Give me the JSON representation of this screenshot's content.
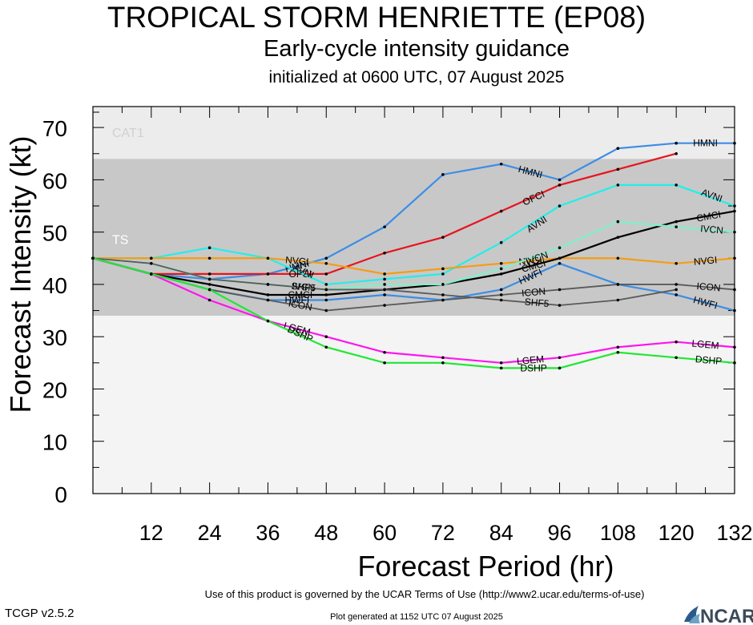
{
  "title": "TROPICAL STORM HENRIETTE (EP08)",
  "subtitle": "Early-cycle intensity guidance",
  "init_line": "initialized at 0600 UTC, 07 August 2025",
  "footer_terms": "Use of this product is governed by the UCAR Terms of Use (http://www2.ucar.edu/terms-of-use)",
  "footer_generated": "Plot generated at 1152 UTC   07 August 2025",
  "version": "TCGP v2.5.2",
  "logo_text": "NCAR",
  "chart_data": {
    "type": "line",
    "xlabel": "Forecast Period (hr)",
    "ylabel": "Forecast Intensity (kt)",
    "xlim": [
      0,
      132
    ],
    "ylim": [
      0,
      74
    ],
    "xticks": [
      12,
      24,
      36,
      48,
      60,
      72,
      84,
      96,
      108,
      120,
      132
    ],
    "yticks": [
      0,
      10,
      20,
      30,
      40,
      50,
      60,
      70
    ],
    "bands": [
      {
        "label": "CAT1",
        "from": 64,
        "to": 74,
        "color": "#ececec"
      },
      {
        "label": "TS",
        "from": 34,
        "to": 64,
        "color": "#c8c8c8"
      },
      {
        "label": "",
        "from": 0,
        "to": 34,
        "color": "#f4f4f4"
      }
    ],
    "series": [
      {
        "name": "HMNI",
        "color": "#3b8de6",
        "x": [
          0,
          12,
          24,
          36,
          48,
          60,
          72,
          84,
          96,
          108,
          120,
          132
        ],
        "values": [
          45,
          42,
          41,
          42,
          45,
          51,
          61,
          63,
          60,
          66,
          67,
          67
        ]
      },
      {
        "name": "OFCI",
        "color": "#e8141e",
        "x": [
          0,
          12,
          24,
          36,
          48,
          60,
          72,
          84,
          96,
          108,
          120
        ],
        "values": [
          45,
          42,
          42,
          42,
          42,
          46,
          49,
          54,
          59,
          62,
          65
        ]
      },
      {
        "name": "AVNI",
        "color": "#22eeea",
        "x": [
          0,
          12,
          24,
          36,
          48,
          60,
          72,
          84,
          96,
          108,
          120,
          132
        ],
        "values": [
          45,
          45,
          47,
          45,
          40,
          41,
          42,
          48,
          55,
          59,
          59,
          55
        ]
      },
      {
        "name": "NVGI",
        "color": "#f59c14",
        "x": [
          0,
          12,
          24,
          36,
          48,
          60,
          72,
          84,
          96,
          108,
          120,
          132
        ],
        "values": [
          45,
          45,
          45,
          45,
          44,
          42,
          43,
          44,
          45,
          45,
          44,
          45
        ]
      },
      {
        "name": "CMCI",
        "color": "#000000",
        "x": [
          0,
          12,
          24,
          36,
          48,
          60,
          72,
          84,
          96,
          108,
          120,
          132
        ],
        "values": [
          45,
          42,
          40,
          38,
          38,
          39,
          40,
          42,
          45,
          49,
          52,
          54
        ]
      },
      {
        "name": "IVCN",
        "color": "#7ff0c8",
        "x": [
          0,
          12,
          24,
          36,
          48,
          60,
          72,
          84,
          96,
          108,
          120,
          132
        ],
        "values": [
          45,
          44,
          41,
          40,
          39,
          40,
          40,
          43,
          47,
          52,
          51,
          50
        ]
      },
      {
        "name": "HWFI",
        "color": "#3b8de6",
        "x": [
          0,
          12,
          24,
          36,
          48,
          60,
          72,
          84,
          96,
          108,
          120,
          132
        ],
        "values": [
          45,
          42,
          39,
          37,
          37,
          38,
          37,
          39,
          44,
          40,
          38,
          35
        ]
      },
      {
        "name": "ICON",
        "color": "#5a5a5a",
        "x": [
          0,
          12,
          24,
          36,
          48,
          60,
          72,
          84,
          96,
          108,
          120,
          132
        ],
        "values": [
          45,
          42,
          39,
          37,
          35,
          36,
          37,
          38,
          39,
          40,
          40,
          39
        ]
      },
      {
        "name": "SHF5",
        "color": "#5a5a5a",
        "x": [
          0,
          12,
          24,
          36,
          48,
          60,
          72,
          84,
          96,
          108,
          120
        ],
        "values": [
          45,
          44,
          41,
          40,
          39,
          39,
          38,
          37,
          36,
          37,
          39
        ]
      },
      {
        "name": "LGEM",
        "color": "#ff14ee",
        "x": [
          0,
          12,
          24,
          36,
          48,
          60,
          72,
          84,
          96,
          108,
          120,
          132
        ],
        "values": [
          45,
          42,
          37,
          33,
          30,
          27,
          26,
          25,
          26,
          28,
          29,
          28
        ]
      },
      {
        "name": "DSHP",
        "color": "#22e634",
        "x": [
          0,
          12,
          24,
          36,
          48,
          60,
          72,
          84,
          96,
          108,
          120,
          132
        ],
        "values": [
          45,
          42,
          39,
          33,
          28,
          25,
          25,
          24,
          24,
          27,
          26,
          25
        ]
      }
    ]
  }
}
